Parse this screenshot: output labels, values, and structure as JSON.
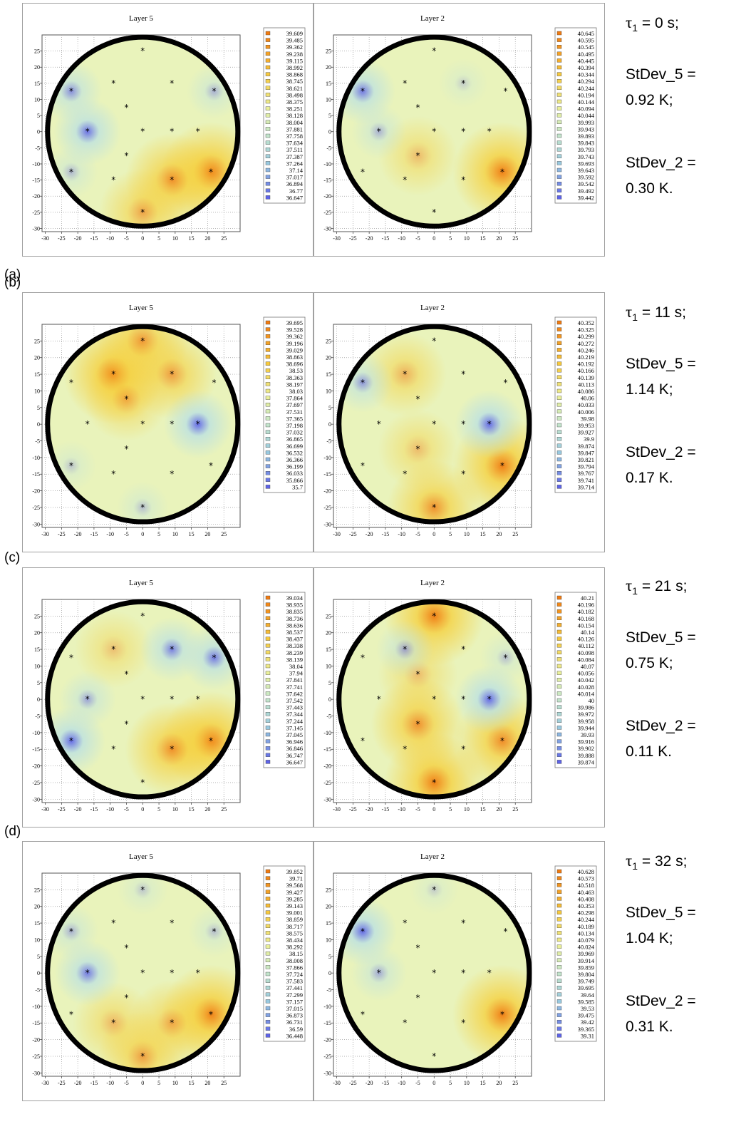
{
  "chart_data": [
    {
      "type": "heatmap",
      "row": "(a)",
      "time": {
        "label_prefix": "τ",
        "sub": "1",
        "value": "= 0 s;"
      },
      "stdev_5": {
        "label": "StDev_5 =",
        "value": "0.92 K;"
      },
      "stdev_2": {
        "label": "StDev_2 =",
        "value": "0.30 K."
      },
      "panels": [
        {
          "title": "Layer 5",
          "xticks": [
            "-30",
            "-25",
            "-20",
            "-15",
            "-10",
            "-5",
            "0",
            "5",
            "10",
            "15",
            "20",
            "25"
          ],
          "yticks": [
            "25",
            "20",
            "15",
            "10",
            "5",
            "0",
            "-5",
            "-10",
            "-15",
            "-20",
            "-25",
            "-30"
          ],
          "xlim": [
            -31,
            30
          ],
          "ylim": [
            -31,
            30
          ],
          "legend": [
            "39.609",
            "39.485",
            "39.362",
            "39.238",
            "39.115",
            "38.992",
            "38.868",
            "38.745",
            "38.621",
            "38.498",
            "38.375",
            "38.251",
            "38.128",
            "38.004",
            "37.881",
            "37.758",
            "37.634",
            "37.511",
            "37.387",
            "37.264",
            "37.14",
            "37.017",
            "36.894",
            "36.77",
            "36.647"
          ],
          "hotspots": [
            {
              "x": 21,
              "y": -12.5,
              "level": 1.0
            },
            {
              "x": 9,
              "y": -15,
              "level": 0.85
            },
            {
              "x": 0,
              "y": -25,
              "level": 0.7
            },
            {
              "x": -22,
              "y": 12.5,
              "level": -0.75
            },
            {
              "x": -17,
              "y": 0,
              "level": -0.95
            },
            {
              "x": 22,
              "y": 12.5,
              "level": -0.5
            },
            {
              "x": -22,
              "y": -12.5,
              "level": -0.45
            }
          ]
        },
        {
          "title": "Layer 2",
          "xticks": [
            "-30",
            "-25",
            "-20",
            "-15",
            "-10",
            "-5",
            "0",
            "5",
            "10",
            "15",
            "20",
            "25"
          ],
          "yticks": [
            "25",
            "20",
            "15",
            "10",
            "5",
            "0",
            "-5",
            "-10",
            "-15",
            "-20",
            "-25",
            "-30"
          ],
          "xlim": [
            -31,
            30
          ],
          "ylim": [
            -31,
            30
          ],
          "legend": [
            "40.645",
            "40.595",
            "40.545",
            "40.495",
            "40.445",
            "40.394",
            "40.344",
            "40.294",
            "40.244",
            "40.194",
            "40.144",
            "40.094",
            "40.044",
            "39.993",
            "39.943",
            "39.893",
            "39.843",
            "39.793",
            "39.743",
            "39.693",
            "39.643",
            "39.592",
            "39.542",
            "39.492",
            "39.442"
          ],
          "hotspots": [
            {
              "x": 21,
              "y": -12.5,
              "level": 1.0
            },
            {
              "x": -5,
              "y": -7.5,
              "level": 0.5
            },
            {
              "x": -22,
              "y": 12.5,
              "level": -0.9
            },
            {
              "x": -17,
              "y": 0,
              "level": -0.5
            },
            {
              "x": 9,
              "y": 15,
              "level": -0.3
            }
          ]
        }
      ]
    },
    {
      "type": "heatmap",
      "row": "(b)",
      "time": {
        "label_prefix": "τ",
        "sub": "1",
        "value": "= 11 s;"
      },
      "stdev_5": {
        "label": "StDev_5 =",
        "value": "1.14 K;"
      },
      "stdev_2": {
        "label": "StDev_2 =",
        "value": "0.17 K."
      },
      "panels": [
        {
          "title": "Layer 5",
          "xticks": [
            "-30",
            "-25",
            "-20",
            "-15",
            "-10",
            "-5",
            "0",
            "5",
            "10",
            "15",
            "20",
            "25"
          ],
          "yticks": [
            "25",
            "20",
            "15",
            "10",
            "5",
            "0",
            "-5",
            "-10",
            "-15",
            "-20",
            "-25",
            "-30"
          ],
          "xlim": [
            -31,
            30
          ],
          "ylim": [
            -31,
            30
          ],
          "legend": [
            "39.695",
            "39.528",
            "39.362",
            "39.196",
            "39.029",
            "38.863",
            "38.696",
            "38.53",
            "38.363",
            "38.197",
            "38.03",
            "37.864",
            "37.697",
            "37.531",
            "37.365",
            "37.198",
            "37.032",
            "36.865",
            "36.699",
            "36.532",
            "36.366",
            "36.199",
            "36.033",
            "35.866",
            "35.7"
          ],
          "hotspots": [
            {
              "x": -9,
              "y": 15,
              "level": 1.0
            },
            {
              "x": 0,
              "y": 25,
              "level": 0.8
            },
            {
              "x": 9,
              "y": 15,
              "level": 0.75
            },
            {
              "x": -5,
              "y": 7.5,
              "level": 0.6
            },
            {
              "x": 17,
              "y": 0,
              "level": -1.0
            },
            {
              "x": 0,
              "y": -25,
              "level": -0.4
            },
            {
              "x": -22,
              "y": -12.5,
              "level": -0.35
            }
          ]
        },
        {
          "title": "Layer 2",
          "xticks": [
            "-30",
            "-25",
            "-20",
            "-15",
            "-10",
            "-5",
            "0",
            "5",
            "10",
            "15",
            "20",
            "25"
          ],
          "yticks": [
            "25",
            "20",
            "15",
            "10",
            "5",
            "0",
            "-5",
            "-10",
            "-15",
            "-20",
            "-25",
            "-30"
          ],
          "xlim": [
            -31,
            30
          ],
          "ylim": [
            -31,
            30
          ],
          "legend": [
            "40.352",
            "40.325",
            "40.299",
            "40.272",
            "40.246",
            "40.219",
            "40.192",
            "40.166",
            "40.139",
            "40.113",
            "40.086",
            "40.06",
            "40.033",
            "40.006",
            "39.98",
            "39.953",
            "39.927",
            "39.9",
            "39.874",
            "39.847",
            "39.821",
            "39.794",
            "39.767",
            "39.741",
            "39.714"
          ],
          "hotspots": [
            {
              "x": 21,
              "y": -12.5,
              "level": 1.0
            },
            {
              "x": 0,
              "y": -25,
              "level": 0.85
            },
            {
              "x": -9,
              "y": 15,
              "level": 0.6
            },
            {
              "x": -5,
              "y": -7.5,
              "level": 0.5
            },
            {
              "x": 17,
              "y": 0,
              "level": -1.0
            },
            {
              "x": -22,
              "y": 12.5,
              "level": -0.7
            }
          ]
        }
      ]
    },
    {
      "type": "heatmap",
      "row": "(c)",
      "time": {
        "label_prefix": "τ",
        "sub": "1",
        "value": "= 21 s;"
      },
      "stdev_5": {
        "label": "StDev_5 =",
        "value": "0.75 K;"
      },
      "stdev_2": {
        "label": "StDev_2 =",
        "value": "0.11 K."
      },
      "panels": [
        {
          "title": "Layer 5",
          "xticks": [
            "-30",
            "-25",
            "-20",
            "-15",
            "-10",
            "-5",
            "0",
            "5",
            "10",
            "15",
            "20",
            "25"
          ],
          "yticks": [
            "25",
            "20",
            "15",
            "10",
            "5",
            "0",
            "-5",
            "-10",
            "-15",
            "-20",
            "-25",
            "-30"
          ],
          "xlim": [
            -31,
            30
          ],
          "ylim": [
            -31,
            30
          ],
          "legend": [
            "39.034",
            "38.935",
            "38.835",
            "38.736",
            "38.636",
            "38.537",
            "38.437",
            "38.338",
            "38.239",
            "38.139",
            "38.04",
            "37.94",
            "37.841",
            "37.741",
            "37.642",
            "37.542",
            "37.443",
            "37.344",
            "37.244",
            "37.145",
            "37.045",
            "36.946",
            "36.846",
            "36.747",
            "36.647"
          ],
          "hotspots": [
            {
              "x": 21,
              "y": -12.5,
              "level": 1.0
            },
            {
              "x": 9,
              "y": -15,
              "level": 0.85
            },
            {
              "x": -9,
              "y": 15,
              "level": 0.45
            },
            {
              "x": -22,
              "y": -12.5,
              "level": -1.0
            },
            {
              "x": 22,
              "y": 12.5,
              "level": -0.9
            },
            {
              "x": 9,
              "y": 15,
              "level": -0.85
            },
            {
              "x": -17,
              "y": 0,
              "level": -0.6
            }
          ]
        },
        {
          "title": "Layer 2",
          "xticks": [
            "-30",
            "-25",
            "-20",
            "-15",
            "-10",
            "-5",
            "0",
            "5",
            "10",
            "15",
            "20",
            "25"
          ],
          "yticks": [
            "25",
            "20",
            "15",
            "10",
            "5",
            "0",
            "-5",
            "-10",
            "-15",
            "-20",
            "-25",
            "-30"
          ],
          "xlim": [
            -31,
            30
          ],
          "ylim": [
            -31,
            30
          ],
          "legend": [
            "40.21",
            "40.196",
            "40.182",
            "40.168",
            "40.154",
            "40.14",
            "40.126",
            "40.112",
            "40.098",
            "40.084",
            "40.07",
            "40.056",
            "40.042",
            "40.028",
            "40.014",
            "40",
            "39.986",
            "39.972",
            "39.958",
            "39.944",
            "39.93",
            "39.916",
            "39.902",
            "39.888",
            "39.874"
          ],
          "hotspots": [
            {
              "x": 0,
              "y": 25,
              "level": 1.0
            },
            {
              "x": 0,
              "y": -25,
              "level": 1.0
            },
            {
              "x": 21,
              "y": -12.5,
              "level": 0.9
            },
            {
              "x": -5,
              "y": -7.5,
              "level": 0.85
            },
            {
              "x": -5,
              "y": 7.5,
              "level": 0.5
            },
            {
              "x": 17,
              "y": 0,
              "level": -1.0
            },
            {
              "x": -9,
              "y": 15,
              "level": -0.6
            },
            {
              "x": 22,
              "y": 12.5,
              "level": -0.4
            }
          ]
        }
      ]
    },
    {
      "type": "heatmap",
      "row": "(d)",
      "time": {
        "label_prefix": "τ",
        "sub": "1",
        "value": "= 32 s;"
      },
      "stdev_5": {
        "label": "StDev_5 =",
        "value": "1.04 K;"
      },
      "stdev_2": {
        "label": "StDev_2 =",
        "value": "0.31 K."
      },
      "panels": [
        {
          "title": "Layer 5",
          "xticks": [
            "-30",
            "-25",
            "-20",
            "-15",
            "-10",
            "-5",
            "0",
            "5",
            "10",
            "15",
            "20",
            "25"
          ],
          "yticks": [
            "25",
            "20",
            "15",
            "10",
            "5",
            "0",
            "-5",
            "-10",
            "-15",
            "-20",
            "-25",
            "-30"
          ],
          "xlim": [
            -31,
            30
          ],
          "ylim": [
            -31,
            30
          ],
          "legend": [
            "39.852",
            "39.71",
            "39.568",
            "39.427",
            "39.285",
            "39.143",
            "39.001",
            "38.859",
            "38.717",
            "38.575",
            "38.434",
            "38.292",
            "38.15",
            "38.008",
            "37.866",
            "37.724",
            "37.583",
            "37.441",
            "37.299",
            "37.157",
            "37.015",
            "36.873",
            "36.731",
            "36.59",
            "36.448"
          ],
          "hotspots": [
            {
              "x": 21,
              "y": -12.5,
              "level": 1.0
            },
            {
              "x": 0,
              "y": -25,
              "level": 0.75
            },
            {
              "x": 9,
              "y": -15,
              "level": 0.65
            },
            {
              "x": -9,
              "y": -15,
              "level": 0.55
            },
            {
              "x": -17,
              "y": 0,
              "level": -0.9
            },
            {
              "x": -22,
              "y": 12.5,
              "level": -0.5
            },
            {
              "x": 22,
              "y": 12.5,
              "level": -0.4
            },
            {
              "x": 0,
              "y": 25,
              "level": -0.35
            }
          ]
        },
        {
          "title": "Layer 2",
          "xticks": [
            "-30",
            "-25",
            "-20",
            "-15",
            "-10",
            "-5",
            "0",
            "5",
            "10",
            "15",
            "20",
            "25"
          ],
          "yticks": [
            "25",
            "20",
            "15",
            "10",
            "5",
            "0",
            "-5",
            "-10",
            "-15",
            "-20",
            "-25",
            "-30"
          ],
          "xlim": [
            -31,
            30
          ],
          "ylim": [
            -31,
            30
          ],
          "legend": [
            "40.628",
            "40.573",
            "40.518",
            "40.463",
            "40.408",
            "40.353",
            "40.298",
            "40.244",
            "40.189",
            "40.134",
            "40.079",
            "40.024",
            "39.969",
            "39.914",
            "39.859",
            "39.804",
            "39.749",
            "39.695",
            "39.64",
            "39.585",
            "39.53",
            "39.475",
            "39.42",
            "39.365",
            "39.31"
          ],
          "hotspots": [
            {
              "x": 21,
              "y": -12.5,
              "level": 1.0
            },
            {
              "x": -22,
              "y": 12.5,
              "level": -1.0
            },
            {
              "x": -17,
              "y": 0,
              "level": -0.55
            },
            {
              "x": 0,
              "y": 25,
              "level": -0.3
            }
          ]
        }
      ]
    }
  ],
  "sensors": [
    {
      "x": 0,
      "y": 25
    },
    {
      "x": -9,
      "y": 15
    },
    {
      "x": 9,
      "y": 15
    },
    {
      "x": -22,
      "y": 12.5
    },
    {
      "x": 22,
      "y": 12.5
    },
    {
      "x": -5,
      "y": 7.5
    },
    {
      "x": -17,
      "y": 0
    },
    {
      "x": 0,
      "y": 0
    },
    {
      "x": 9,
      "y": 0
    },
    {
      "x": 17,
      "y": 0
    },
    {
      "x": -5,
      "y": -7.5
    },
    {
      "x": -22,
      "y": -12.5
    },
    {
      "x": -9,
      "y": -15
    },
    {
      "x": 9,
      "y": -15
    },
    {
      "x": 21,
      "y": -12.5
    },
    {
      "x": 0,
      "y": -25
    }
  ],
  "colors": {
    "base": "#e9f3bb",
    "hot": "#f07a10",
    "warm": "#f6cf3a",
    "cool": "#b9e0e4",
    "cold": "#5d63e8",
    "rim": "#000000",
    "grid": "#9a9a9a"
  }
}
